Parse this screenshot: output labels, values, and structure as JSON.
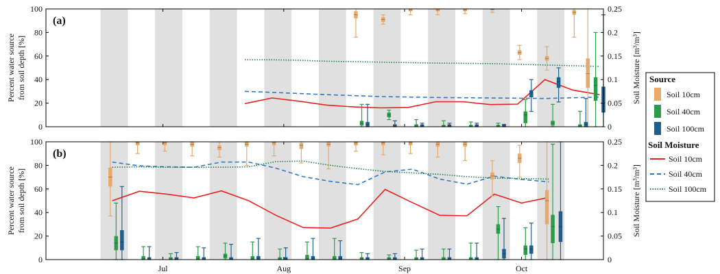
{
  "chart_data": [
    {
      "type": "box+line",
      "panel_label": "(a)",
      "ylabel_left": [
        "Percent water source",
        "from soil depth [%]"
      ],
      "ylabel_right": "Soil Moisture [m³/m³]",
      "ylim_left": [
        0,
        100
      ],
      "ylim_right": [
        0,
        0.25
      ],
      "yticks_left": [
        "0",
        "20",
        "40",
        "60",
        "80",
        "100"
      ],
      "yticks_right": [
        "0",
        "0.05",
        "0.1",
        "0.15",
        "0.2",
        "0.25"
      ],
      "x_unit": "days since 1 Jun",
      "boxes": {
        "Soil 10cm": [
          {
            "t": 79.5,
            "q1": 92,
            "med": 95,
            "q3": 98,
            "min": 76,
            "max": 100
          },
          {
            "t": 86.5,
            "q1": 89,
            "med": 91,
            "q3": 93,
            "min": 87,
            "max": 95
          },
          {
            "t": 93.5,
            "q1": 98,
            "med": 99,
            "q3": 100,
            "min": 95,
            "max": 100
          },
          {
            "t": 100.5,
            "q1": 98,
            "med": 99,
            "q3": 100,
            "min": 95,
            "max": 100
          },
          {
            "t": 107.5,
            "q1": 98,
            "med": 99,
            "q3": 100,
            "min": 96,
            "max": 100
          },
          {
            "t": 114.5,
            "q1": 99,
            "med": 99.5,
            "q3": 100,
            "min": 97,
            "max": 100
          },
          {
            "t": 121.5,
            "q1": 61,
            "med": 63,
            "q3": 65,
            "min": 57,
            "max": 69
          },
          {
            "t": 128.5,
            "q1": 56,
            "med": 58,
            "q3": 60,
            "min": 48,
            "max": 68
          },
          {
            "t": 135.5,
            "q1": 95,
            "med": 97,
            "q3": 99,
            "min": 76,
            "max": 100
          },
          {
            "t": 139,
            "q1": 33,
            "med": 45,
            "q3": 58,
            "min": 0,
            "max": 100
          }
        ],
        "Soil 40cm": [
          {
            "t": 81,
            "q1": 1,
            "med": 3,
            "q3": 5,
            "min": 0,
            "max": 19
          },
          {
            "t": 88,
            "q1": 8,
            "med": 10,
            "q3": 12,
            "min": 6,
            "max": 14
          },
          {
            "t": 95,
            "q1": 0,
            "med": 1,
            "q3": 2,
            "min": 0,
            "max": 6
          },
          {
            "t": 102,
            "q1": 0,
            "med": 1,
            "q3": 1.5,
            "min": 0,
            "max": 5
          },
          {
            "t": 109,
            "q1": 0,
            "med": 1,
            "q3": 1.5,
            "min": 0,
            "max": 4
          },
          {
            "t": 116,
            "q1": 0,
            "med": 1,
            "q3": 1.5,
            "min": 0,
            "max": 3
          },
          {
            "t": 123,
            "q1": 3,
            "med": 10,
            "q3": 13,
            "min": 0,
            "max": 23
          },
          {
            "t": 130,
            "q1": 1,
            "med": 3,
            "q3": 5,
            "min": 0,
            "max": 19
          },
          {
            "t": 137,
            "q1": 0,
            "med": 1,
            "q3": 2,
            "min": 0,
            "max": 13
          },
          {
            "t": 141,
            "q1": 22,
            "med": 35,
            "q3": 42,
            "min": 0,
            "max": 80
          }
        ],
        "Soil 100cm": [
          {
            "t": 82.5,
            "q1": 0,
            "med": 2,
            "q3": 4,
            "min": 0,
            "max": 19
          },
          {
            "t": 89.5,
            "q1": 0,
            "med": 1,
            "q3": 2,
            "min": 0,
            "max": 5
          },
          {
            "t": 96.5,
            "q1": 0,
            "med": 1,
            "q3": 2,
            "min": 0,
            "max": 3
          },
          {
            "t": 103.5,
            "q1": 0,
            "med": 1,
            "q3": 2,
            "min": 0,
            "max": 3
          },
          {
            "t": 110.5,
            "q1": 0,
            "med": 1,
            "q3": 2,
            "min": 0,
            "max": 3
          },
          {
            "t": 117.5,
            "q1": 0,
            "med": 1,
            "q3": 2,
            "min": 0,
            "max": 2
          },
          {
            "t": 124.5,
            "q1": 25,
            "med": 29,
            "q3": 31,
            "min": 13,
            "max": 40
          },
          {
            "t": 131.5,
            "q1": 33,
            "med": 38,
            "q3": 42,
            "min": 21,
            "max": 50
          },
          {
            "t": 138.5,
            "q1": 0,
            "med": 2,
            "q3": 4,
            "min": 0,
            "max": 24
          },
          {
            "t": 143,
            "q1": 12,
            "med": 20,
            "q3": 34,
            "min": 0,
            "max": 95
          }
        ]
      },
      "lines": {
        "Soil 10cm": {
          "t": [
            51,
            58,
            65,
            72,
            79,
            86,
            93,
            100,
            107,
            114,
            121,
            128,
            135,
            142
          ],
          "y": [
            0.049,
            0.061,
            0.054,
            0.046,
            0.042,
            0.04,
            0.041,
            0.053,
            0.053,
            0.047,
            0.048,
            0.1,
            0.078,
            0.068
          ]
        },
        "Soil 40cm": {
          "t": [
            51,
            58,
            72,
            86,
            100,
            114,
            128,
            142
          ],
          "y": [
            0.075,
            0.073,
            0.068,
            0.064,
            0.062,
            0.061,
            0.06,
            0.063
          ]
        },
        "Soil 100cm": {
          "t": [
            51,
            58,
            65,
            72,
            86,
            100,
            114,
            128,
            142
          ],
          "y": [
            0.142,
            0.142,
            0.141,
            0.139,
            0.137,
            0.135,
            0.134,
            0.131,
            0.128
          ]
        }
      }
    },
    {
      "type": "box+line",
      "panel_label": "(b)",
      "ylabel_left": [
        "Percent water source",
        "from soil depth [%]"
      ],
      "ylabel_right": "Soil Moisture [m³/m³]",
      "ylim_left": [
        0,
        100
      ],
      "ylim_right": [
        0,
        0.25
      ],
      "yticks_left": [
        "0",
        "20",
        "40",
        "60",
        "80",
        "100"
      ],
      "yticks_right": [
        "0",
        "0.05",
        "0.1",
        "0.15",
        "0.2",
        "0.25"
      ],
      "x_unit": "days since 1 Jun",
      "boxes": {
        "Soil 10cm": [
          {
            "t": 16.5,
            "q1": 62,
            "med": 70,
            "q3": 78,
            "min": 37,
            "max": 100
          },
          {
            "t": 23.5,
            "q1": 97,
            "med": 99,
            "q3": 100,
            "min": 90,
            "max": 100
          },
          {
            "t": 30.5,
            "q1": 97,
            "med": 99,
            "q3": 100,
            "min": 92,
            "max": 100
          },
          {
            "t": 37.5,
            "q1": 96,
            "med": 98,
            "q3": 100,
            "min": 88,
            "max": 100
          },
          {
            "t": 44.5,
            "q1": 93,
            "med": 95,
            "q3": 97,
            "min": 87,
            "max": 100
          },
          {
            "t": 51.5,
            "q1": 96,
            "med": 98,
            "q3": 100,
            "min": 80,
            "max": 100
          },
          {
            "t": 58.5,
            "q1": 97,
            "med": 99,
            "q3": 100,
            "min": 88,
            "max": 100
          },
          {
            "t": 65.5,
            "q1": 94,
            "med": 97,
            "q3": 99,
            "min": 82,
            "max": 100
          },
          {
            "t": 72.5,
            "q1": 96,
            "med": 98,
            "q3": 100,
            "min": 77,
            "max": 100
          },
          {
            "t": 79.5,
            "q1": 97,
            "med": 99,
            "q3": 100,
            "min": 92,
            "max": 100
          },
          {
            "t": 86.5,
            "q1": 97,
            "med": 99,
            "q3": 100,
            "min": 89,
            "max": 100
          },
          {
            "t": 93.5,
            "q1": 97,
            "med": 99,
            "q3": 100,
            "min": 90,
            "max": 100
          },
          {
            "t": 100.5,
            "q1": 96,
            "med": 98,
            "q3": 100,
            "min": 87,
            "max": 100
          },
          {
            "t": 107.5,
            "q1": 96,
            "med": 98,
            "q3": 100,
            "min": 84,
            "max": 100
          },
          {
            "t": 114.5,
            "q1": 68,
            "med": 71,
            "q3": 74,
            "min": 54,
            "max": 84
          },
          {
            "t": 121.5,
            "q1": 82,
            "med": 86,
            "q3": 90,
            "min": 70,
            "max": 97
          },
          {
            "t": 128.5,
            "q1": 30,
            "med": 50,
            "q3": 59,
            "min": 0,
            "max": 100
          }
        ],
        "Soil 40cm": [
          {
            "t": 18,
            "q1": 8,
            "med": 14,
            "q3": 20,
            "min": 0,
            "max": 48
          },
          {
            "t": 25,
            "q1": 0,
            "med": 1,
            "q3": 3,
            "min": 0,
            "max": 11
          },
          {
            "t": 32,
            "q1": 0,
            "med": 1,
            "q3": 2,
            "min": 0,
            "max": 5
          },
          {
            "t": 39,
            "q1": 0,
            "med": 1,
            "q3": 3,
            "min": 0,
            "max": 11
          },
          {
            "t": 46,
            "q1": 1,
            "med": 3,
            "q3": 5,
            "min": 0,
            "max": 14
          },
          {
            "t": 53,
            "q1": 0,
            "med": 1,
            "q3": 3,
            "min": 0,
            "max": 15
          },
          {
            "t": 60,
            "q1": 0,
            "med": 1,
            "q3": 2,
            "min": 0,
            "max": 9
          },
          {
            "t": 67,
            "q1": 0,
            "med": 1,
            "q3": 4,
            "min": 0,
            "max": 15
          },
          {
            "t": 74,
            "q1": 0,
            "med": 1,
            "q3": 3,
            "min": 0,
            "max": 18
          },
          {
            "t": 81,
            "q1": 0,
            "med": 1,
            "q3": 2,
            "min": 0,
            "max": 6
          },
          {
            "t": 88,
            "q1": 0,
            "med": 1,
            "q3": 2,
            "min": 0,
            "max": 4
          },
          {
            "t": 95,
            "q1": 0,
            "med": 1,
            "q3": 2,
            "min": 0,
            "max": 8
          },
          {
            "t": 102,
            "q1": 0,
            "med": 1,
            "q3": 2,
            "min": 0,
            "max": 9
          },
          {
            "t": 109,
            "q1": 0,
            "med": 1,
            "q3": 2,
            "min": 0,
            "max": 14
          },
          {
            "t": 116,
            "q1": 22,
            "med": 26,
            "q3": 30,
            "min": 0,
            "max": 45
          },
          {
            "t": 123,
            "q1": 4,
            "med": 9,
            "q3": 12,
            "min": 0,
            "max": 27
          },
          {
            "t": 130,
            "q1": 14,
            "med": 28,
            "q3": 38,
            "min": 0,
            "max": 98
          }
        ],
        "Soil 100cm": [
          {
            "t": 19.5,
            "q1": 8,
            "med": 15,
            "q3": 25,
            "min": 0,
            "max": 62
          },
          {
            "t": 26.5,
            "q1": 0,
            "med": 1,
            "q3": 2,
            "min": 0,
            "max": 11
          },
          {
            "t": 33.5,
            "q1": 0,
            "med": 1,
            "q3": 2,
            "min": 0,
            "max": 6
          },
          {
            "t": 40.5,
            "q1": 0,
            "med": 1,
            "q3": 2,
            "min": 0,
            "max": 10
          },
          {
            "t": 47.5,
            "q1": 0,
            "med": 1,
            "q3": 2,
            "min": 0,
            "max": 13
          },
          {
            "t": 54.5,
            "q1": 0,
            "med": 1,
            "q3": 3,
            "min": 0,
            "max": 18
          },
          {
            "t": 61.5,
            "q1": 0,
            "med": 1,
            "q3": 2,
            "min": 0,
            "max": 10
          },
          {
            "t": 68.5,
            "q1": 0,
            "med": 1,
            "q3": 3,
            "min": 0,
            "max": 18
          },
          {
            "t": 75.5,
            "q1": 0,
            "med": 1,
            "q3": 3,
            "min": 0,
            "max": 16
          },
          {
            "t": 82.5,
            "q1": 0,
            "med": 1,
            "q3": 2,
            "min": 0,
            "max": 5
          },
          {
            "t": 89.5,
            "q1": 0,
            "med": 1,
            "q3": 2,
            "min": 0,
            "max": 5
          },
          {
            "t": 96.5,
            "q1": 0,
            "med": 1,
            "q3": 2,
            "min": 0,
            "max": 9
          },
          {
            "t": 103.5,
            "q1": 0,
            "med": 1,
            "q3": 2,
            "min": 0,
            "max": 9
          },
          {
            "t": 110.5,
            "q1": 0,
            "med": 1,
            "q3": 2,
            "min": 0,
            "max": 14
          },
          {
            "t": 117.5,
            "q1": 1,
            "med": 5,
            "q3": 9,
            "min": 0,
            "max": 35
          },
          {
            "t": 124.5,
            "q1": 5,
            "med": 9,
            "q3": 12,
            "min": 0,
            "max": 31
          },
          {
            "t": 132,
            "q1": 15,
            "med": 28,
            "q3": 41,
            "min": 0,
            "max": 100
          }
        ]
      },
      "lines": {
        "Soil 10cm": {
          "t": [
            17,
            24,
            31,
            38,
            45,
            52,
            59,
            66,
            73,
            80,
            87,
            94,
            101,
            108,
            115,
            122,
            129
          ],
          "y": [
            0.125,
            0.145,
            0.139,
            0.131,
            0.146,
            0.125,
            0.094,
            0.068,
            0.067,
            0.086,
            0.149,
            0.121,
            0.094,
            0.093,
            0.139,
            0.12,
            0.132
          ]
        },
        "Soil 40cm": {
          "t": [
            17,
            24,
            31,
            38,
            45,
            52,
            59,
            66,
            73,
            80,
            87,
            94,
            101,
            108,
            115,
            122,
            129
          ],
          "y": [
            0.207,
            0.199,
            0.197,
            0.196,
            0.207,
            0.207,
            0.194,
            0.176,
            0.166,
            0.159,
            0.186,
            0.192,
            0.171,
            0.16,
            0.177,
            0.17,
            0.165
          ]
        },
        "Soil 100cm": {
          "t": [
            17,
            24,
            31,
            38,
            45,
            52,
            59,
            66,
            73,
            80,
            87,
            94,
            101,
            108,
            115,
            122,
            129
          ],
          "y": [
            0.196,
            0.197,
            0.196,
            0.196,
            0.196,
            0.197,
            0.208,
            0.209,
            0.2,
            0.193,
            0.187,
            0.184,
            0.181,
            0.176,
            0.173,
            0.172,
            0.171
          ]
        }
      }
    }
  ],
  "x_axis": {
    "xlim": [
      0,
      143
    ],
    "tick_labels": [
      {
        "t": 30,
        "label": "Jul"
      },
      {
        "t": 61,
        "label": "Aug"
      },
      {
        "t": 92,
        "label": "Sep"
      },
      {
        "t": 122,
        "label": "Oct"
      }
    ],
    "shaded_weeks": [
      [
        14,
        21
      ],
      [
        28,
        35
      ],
      [
        42,
        49
      ],
      [
        56,
        63
      ],
      [
        70,
        77
      ],
      [
        84,
        91
      ],
      [
        98,
        105
      ],
      [
        112,
        119
      ],
      [
        126,
        133
      ]
    ],
    "grid": false
  },
  "legend": {
    "source_title": "Source",
    "moisture_title": "Soil Moisture",
    "items": [
      "Soil 10cm",
      "Soil 40cm",
      "Soil 100cm"
    ]
  },
  "colors": {
    "Soil 10cm_box": "#E8A96A",
    "Soil 40cm_box": "#2E9A4C",
    "Soil 100cm_box": "#1F5F8E",
    "Soil 10cm_line": "#E8201E",
    "Soil 40cm_line": "#2E78C8",
    "Soil 100cm_line": "#1E7D4C",
    "shade": "#E0E0E0"
  }
}
